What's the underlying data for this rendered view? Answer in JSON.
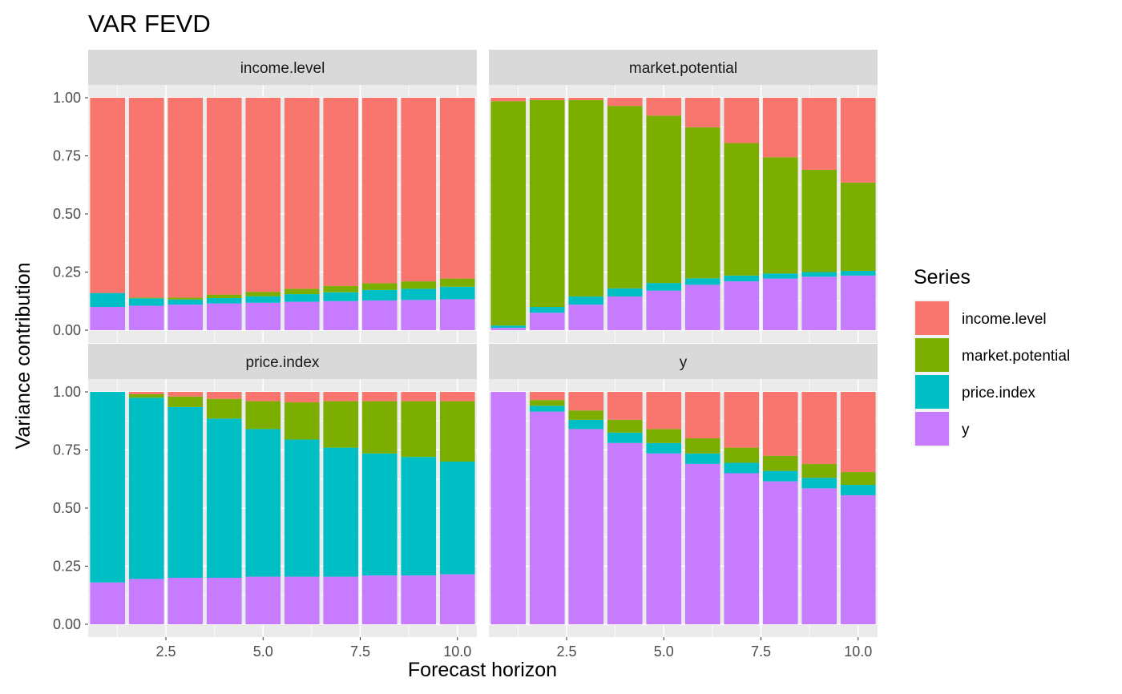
{
  "chart_data": {
    "type": "bar",
    "stacked": true,
    "title": "VAR FEVD",
    "xlabel": "Forecast horizon",
    "ylabel": "Variance contribution",
    "xlim": [
      0.5,
      10.5
    ],
    "ylim": [
      0,
      1
    ],
    "x_ticks": [
      2.5,
      5.0,
      7.5,
      10.0
    ],
    "x_tick_labels": [
      "2.5",
      "5.0",
      "7.5",
      "10.0"
    ],
    "y_ticks": [
      0,
      0.25,
      0.5,
      0.75,
      1.0
    ],
    "y_tick_labels": [
      "0.00",
      "0.25",
      "0.50",
      "0.75",
      "1.00"
    ],
    "x": [
      1,
      2,
      3,
      4,
      5,
      6,
      7,
      8,
      9,
      10
    ],
    "grid": true,
    "legend": {
      "title": "Series",
      "position": "right",
      "entries": [
        "income.level",
        "market.potential",
        "price.index",
        "y"
      ]
    },
    "colors": {
      "income.level": "#F8766D",
      "market.potential": "#7CAE00",
      "price.index": "#00BFC4",
      "y": "#C77CFF",
      "panel_background": "#EBEBEB",
      "strip_background": "#D9D9D9",
      "grid": "#FFFFFF"
    },
    "stack_order_bottom_to_top": [
      "y",
      "price.index",
      "market.potential",
      "income.level"
    ],
    "panels": [
      {
        "name": "income.level",
        "series": [
          {
            "name": "y",
            "values": [
              0.1,
              0.105,
              0.11,
              0.115,
              0.118,
              0.122,
              0.125,
              0.128,
              0.13,
              0.133
            ]
          },
          {
            "name": "price.index",
            "values": [
              0.06,
              0.032,
              0.022,
              0.023,
              0.028,
              0.033,
              0.038,
              0.045,
              0.048,
              0.054
            ]
          },
          {
            "name": "market.potential",
            "values": [
              0.0,
              0.003,
              0.008,
              0.015,
              0.019,
              0.023,
              0.027,
              0.029,
              0.032,
              0.035
            ]
          },
          {
            "name": "income.level",
            "values": [
              0.84,
              0.86,
              0.86,
              0.847,
              0.835,
              0.822,
              0.81,
              0.798,
              0.79,
              0.778
            ]
          }
        ]
      },
      {
        "name": "market.potential",
        "series": [
          {
            "name": "y",
            "values": [
              0.01,
              0.075,
              0.11,
              0.145,
              0.17,
              0.195,
              0.21,
              0.222,
              0.23,
              0.235
            ]
          },
          {
            "name": "price.index",
            "values": [
              0.01,
              0.025,
              0.035,
              0.035,
              0.033,
              0.028,
              0.025,
              0.022,
              0.02,
              0.02
            ]
          },
          {
            "name": "market.potential",
            "values": [
              0.965,
              0.89,
              0.845,
              0.785,
              0.72,
              0.65,
              0.57,
              0.5,
              0.44,
              0.38
            ]
          },
          {
            "name": "income.level",
            "values": [
              0.015,
              0.01,
              0.01,
              0.035,
              0.077,
              0.127,
              0.195,
              0.256,
              0.31,
              0.365
            ]
          }
        ]
      },
      {
        "name": "price.index",
        "series": [
          {
            "name": "y",
            "values": [
              0.18,
              0.195,
              0.2,
              0.2,
              0.205,
              0.205,
              0.205,
              0.21,
              0.21,
              0.215
            ]
          },
          {
            "name": "price.index",
            "values": [
              0.82,
              0.78,
              0.735,
              0.685,
              0.635,
              0.59,
              0.555,
              0.525,
              0.51,
              0.485
            ]
          },
          {
            "name": "market.potential",
            "values": [
              0.0,
              0.015,
              0.045,
              0.085,
              0.12,
              0.16,
              0.2,
              0.225,
              0.24,
              0.26
            ]
          },
          {
            "name": "income.level",
            "values": [
              0.0,
              0.01,
              0.02,
              0.03,
              0.04,
              0.045,
              0.04,
              0.04,
              0.04,
              0.04
            ]
          }
        ]
      },
      {
        "name": "y",
        "series": [
          {
            "name": "y",
            "values": [
              1.0,
              0.915,
              0.84,
              0.78,
              0.735,
              0.69,
              0.65,
              0.615,
              0.585,
              0.555
            ]
          },
          {
            "name": "price.index",
            "values": [
              0.0,
              0.025,
              0.04,
              0.045,
              0.045,
              0.045,
              0.045,
              0.045,
              0.045,
              0.045
            ]
          },
          {
            "name": "market.potential",
            "values": [
              0.0,
              0.025,
              0.04,
              0.055,
              0.06,
              0.065,
              0.065,
              0.065,
              0.06,
              0.055
            ]
          },
          {
            "name": "income.level",
            "values": [
              0.0,
              0.035,
              0.08,
              0.12,
              0.16,
              0.2,
              0.24,
              0.275,
              0.31,
              0.345
            ]
          }
        ]
      }
    ]
  }
}
